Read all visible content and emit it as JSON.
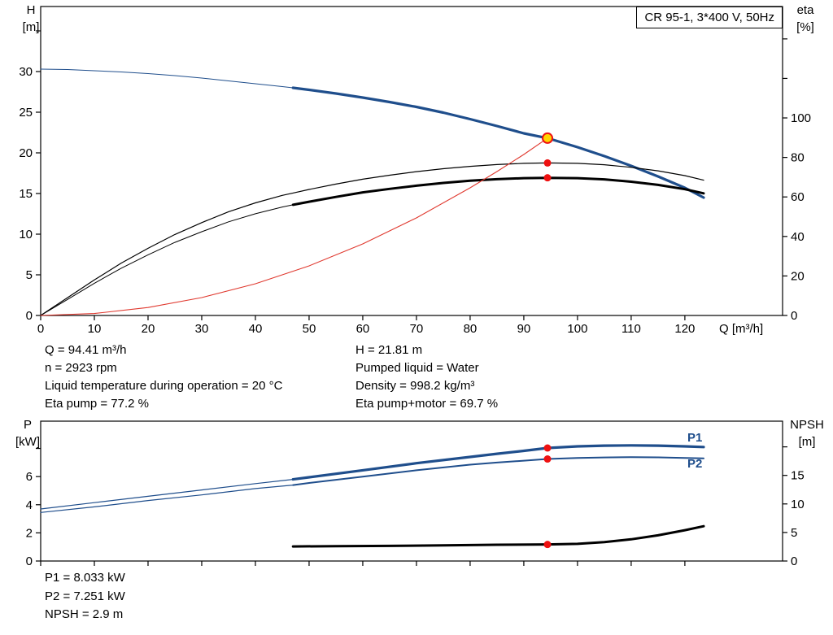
{
  "colors": {
    "curve_blue": "#1f4e8c",
    "curve_black": "#000000",
    "curve_red": "#e0392f",
    "marker_red": "#ee1111",
    "marker_yellow": "#ffd500",
    "frame": "#000000"
  },
  "info": {
    "top_left": [
      "Q = 94.41 m³/h",
      "n = 2923 rpm",
      "Liquid temperature during operation = 20 °C",
      "Eta pump = 77.2 %"
    ],
    "top_right": [
      "H = 21.81 m",
      "Pumped liquid = Water",
      "Density = 998.2 kg/m³",
      "Eta pump+motor = 69.7 %"
    ],
    "bottom": [
      "P1 = 8.033 kW",
      "P2 = 7.251 kW",
      "NPSH = 2.9 m"
    ]
  },
  "chart_data": [
    {
      "id": "qh",
      "type": "line",
      "title": "CR 95-1, 3*400 V, 50Hz",
      "x_axis": {
        "label": "Q [m³/h]",
        "min": 0,
        "max": 138.2,
        "ticks": [
          0,
          10,
          20,
          30,
          40,
          50,
          60,
          70,
          80,
          90,
          100,
          110,
          120
        ],
        "show_labels": true
      },
      "y_left": {
        "label": "H",
        "unit": "[m]",
        "min": 0,
        "max": 38,
        "ticks": [
          0,
          5,
          10,
          15,
          20,
          25,
          30
        ],
        "minor_ticks": [
          35
        ]
      },
      "y_right": {
        "label": "eta",
        "unit": "[%]",
        "min": 0,
        "max": 156.4,
        "ticks": [
          0,
          20,
          40,
          60,
          80,
          100
        ],
        "minor_ticks": [
          120,
          140
        ]
      },
      "grid": false,
      "series": [
        {
          "name": "head",
          "axis": "left",
          "color": "#1f4e8c",
          "width": 1,
          "bold_from": 47,
          "bold_width": 3.2,
          "points": [
            [
              0,
              30.3
            ],
            [
              5,
              30.25
            ],
            [
              10,
              30.1
            ],
            [
              15,
              29.95
            ],
            [
              20,
              29.75
            ],
            [
              25,
              29.5
            ],
            [
              30,
              29.2
            ],
            [
              35,
              28.85
            ],
            [
              40,
              28.5
            ],
            [
              45,
              28.15
            ],
            [
              47,
              28.0
            ],
            [
              50,
              27.75
            ],
            [
              55,
              27.3
            ],
            [
              60,
              26.8
            ],
            [
              65,
              26.25
            ],
            [
              70,
              25.65
            ],
            [
              75,
              24.95
            ],
            [
              80,
              24.15
            ],
            [
              85,
              23.3
            ],
            [
              90,
              22.4
            ],
            [
              94.41,
              21.81
            ],
            [
              100,
              20.7
            ],
            [
              105,
              19.6
            ],
            [
              110,
              18.4
            ],
            [
              115,
              17.1
            ],
            [
              120,
              15.7
            ],
            [
              123.5,
              14.5
            ]
          ]
        },
        {
          "name": "eta_pump",
          "axis": "right",
          "color": "#000000",
          "width": 1.2,
          "points": [
            [
              0,
              0
            ],
            [
              5,
              9
            ],
            [
              10,
              18
            ],
            [
              15,
              26.5
            ],
            [
              20,
              34
            ],
            [
              25,
              41
            ],
            [
              30,
              47
            ],
            [
              35,
              52.5
            ],
            [
              40,
              57
            ],
            [
              45,
              60.8
            ],
            [
              47,
              62
            ],
            [
              50,
              63.8
            ],
            [
              55,
              66.5
            ],
            [
              60,
              69
            ],
            [
              65,
              71
            ],
            [
              70,
              72.8
            ],
            [
              75,
              74.3
            ],
            [
              80,
              75.5
            ],
            [
              85,
              76.4
            ],
            [
              90,
              77
            ],
            [
              94.41,
              77.2
            ],
            [
              100,
              77
            ],
            [
              105,
              76.3
            ],
            [
              110,
              75
            ],
            [
              115,
              73.2
            ],
            [
              120,
              70.8
            ],
            [
              123.5,
              68.5
            ]
          ]
        },
        {
          "name": "eta_pump_motor",
          "axis": "right",
          "color": "#000000",
          "width": 1,
          "bold_from": 47,
          "bold_width": 3,
          "points": [
            [
              0,
              0
            ],
            [
              5,
              8.1
            ],
            [
              10,
              16.3
            ],
            [
              15,
              23.9
            ],
            [
              20,
              30.7
            ],
            [
              25,
              37
            ],
            [
              30,
              42.4
            ],
            [
              35,
              47.4
            ],
            [
              40,
              51.5
            ],
            [
              45,
              54.9
            ],
            [
              47,
              56
            ],
            [
              50,
              57.6
            ],
            [
              55,
              60
            ],
            [
              60,
              62.3
            ],
            [
              65,
              64.1
            ],
            [
              70,
              65.7
            ],
            [
              75,
              67.1
            ],
            [
              80,
              68.2
            ],
            [
              85,
              69
            ],
            [
              90,
              69.5
            ],
            [
              94.41,
              69.7
            ],
            [
              100,
              69.5
            ],
            [
              105,
              68.9
            ],
            [
              110,
              67.7
            ],
            [
              115,
              66.1
            ],
            [
              120,
              63.9
            ],
            [
              123.5,
              61.8
            ]
          ]
        },
        {
          "name": "system",
          "axis": "left",
          "color": "#e0392f",
          "width": 1.1,
          "points": [
            [
              0,
              0
            ],
            [
              10,
              0.24
            ],
            [
              20,
              0.98
            ],
            [
              30,
              2.2
            ],
            [
              40,
              3.9
            ],
            [
              50,
              6.1
            ],
            [
              60,
              8.8
            ],
            [
              70,
              12.0
            ],
            [
              80,
              15.7
            ],
            [
              85,
              17.7
            ],
            [
              90,
              19.8
            ],
            [
              94.41,
              21.81
            ]
          ]
        }
      ],
      "markers": [
        {
          "q": 94.41,
          "value": 21.81,
          "axis": "left",
          "style": "duty"
        },
        {
          "q": 94.41,
          "value": 77.2,
          "axis": "right",
          "style": "dot"
        },
        {
          "q": 94.41,
          "value": 69.7,
          "axis": "right",
          "style": "dot"
        }
      ]
    },
    {
      "id": "power",
      "type": "line",
      "title": "",
      "x_axis": {
        "label": "",
        "min": 0,
        "max": 138.2,
        "ticks": [
          0,
          10,
          20,
          30,
          40,
          50,
          60,
          70,
          80,
          90,
          100,
          110,
          120
        ],
        "show_labels": false
      },
      "y_left": {
        "label": "P",
        "unit": "[kW]",
        "min": 0,
        "max": 9.94,
        "ticks": [
          0,
          2,
          4,
          6
        ],
        "minor_ticks": [
          8
        ]
      },
      "y_right": {
        "label": "NPSH",
        "unit": "[m]",
        "min": 0,
        "max": 24.5,
        "ticks": [
          0,
          5,
          10,
          15
        ],
        "minor_ticks": [
          20
        ]
      },
      "grid": false,
      "series": [
        {
          "name": "P1",
          "axis": "left",
          "color": "#1f4e8c",
          "width": 1.2,
          "bold_from": 47,
          "bold_width": 3.2,
          "points": [
            [
              0,
              3.7
            ],
            [
              10,
              4.15
            ],
            [
              20,
              4.6
            ],
            [
              30,
              5.05
            ],
            [
              40,
              5.5
            ],
            [
              47,
              5.8
            ],
            [
              50,
              5.95
            ],
            [
              60,
              6.45
            ],
            [
              70,
              6.95
            ],
            [
              80,
              7.4
            ],
            [
              85,
              7.62
            ],
            [
              90,
              7.83
            ],
            [
              94.41,
              8.033
            ],
            [
              100,
              8.15
            ],
            [
              105,
              8.2
            ],
            [
              110,
              8.22
            ],
            [
              115,
              8.2
            ],
            [
              120,
              8.15
            ],
            [
              123.5,
              8.1
            ]
          ]
        },
        {
          "name": "P2",
          "axis": "left",
          "color": "#1f4e8c",
          "width": 1.2,
          "bold_from": 47,
          "bold_width": 2,
          "points": [
            [
              0,
              3.45
            ],
            [
              10,
              3.85
            ],
            [
              20,
              4.3
            ],
            [
              30,
              4.7
            ],
            [
              40,
              5.15
            ],
            [
              47,
              5.4
            ],
            [
              50,
              5.55
            ],
            [
              60,
              6.0
            ],
            [
              70,
              6.45
            ],
            [
              80,
              6.85
            ],
            [
              85,
              7.0
            ],
            [
              90,
              7.13
            ],
            [
              94.41,
              7.251
            ],
            [
              100,
              7.32
            ],
            [
              105,
              7.36
            ],
            [
              110,
              7.38
            ],
            [
              115,
              7.37
            ],
            [
              120,
              7.33
            ],
            [
              123.5,
              7.3
            ]
          ]
        },
        {
          "name": "NPSH",
          "axis": "right",
          "color": "#000000",
          "width": 3,
          "points": [
            [
              47,
              2.55
            ],
            [
              55,
              2.6
            ],
            [
              65,
              2.65
            ],
            [
              75,
              2.75
            ],
            [
              85,
              2.85
            ],
            [
              94.41,
              2.9
            ],
            [
              100,
              3.0
            ],
            [
              105,
              3.3
            ],
            [
              110,
              3.8
            ],
            [
              115,
              4.5
            ],
            [
              120,
              5.4
            ],
            [
              123.5,
              6.1
            ]
          ]
        }
      ],
      "markers": [
        {
          "q": 94.41,
          "value": 8.033,
          "axis": "left",
          "style": "dot"
        },
        {
          "q": 94.41,
          "value": 7.251,
          "axis": "left",
          "style": "dot"
        },
        {
          "q": 94.41,
          "value": 2.9,
          "axis": "right",
          "style": "dot"
        }
      ]
    }
  ]
}
